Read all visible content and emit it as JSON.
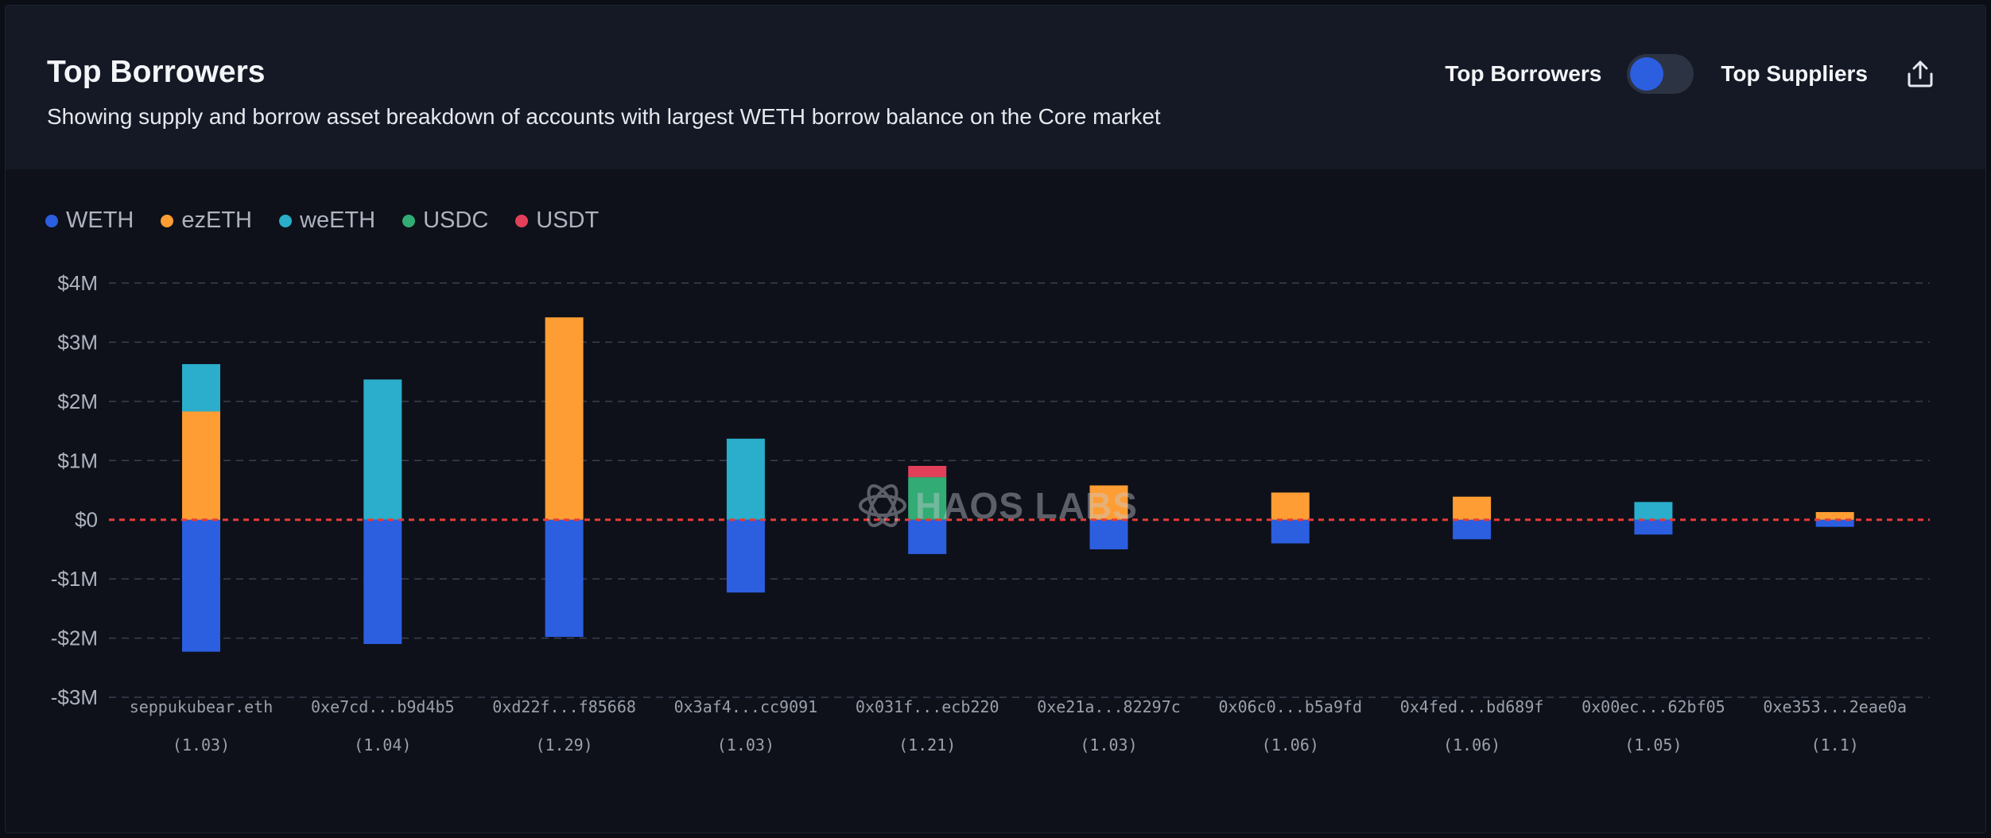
{
  "header": {
    "title": "Top Borrowers",
    "subtitle": "Showing supply and borrow asset breakdown of accounts with largest WETH borrow balance on the Core market",
    "toggle_left_label": "Top Borrowers",
    "toggle_right_label": "Top Suppliers",
    "toggle_state": "Top Borrowers",
    "share_icon": "share-icon"
  },
  "watermark": {
    "text": "HAOS LABS"
  },
  "colors": {
    "WETH": "#2c5ee0",
    "ezETH": "#fd9d33",
    "weETH": "#2aaecb",
    "USDC": "#33ab74",
    "USDT": "#e2405a",
    "zero_line": "#e53b3b",
    "grid": "#3a4050",
    "tick_text": "#aeb3bf",
    "category_text": "#9ba0ab"
  },
  "chart_data": {
    "type": "bar",
    "stacked": true,
    "title": "Top Borrowers",
    "ylim": [
      -3000000,
      4000000
    ],
    "yticks": [
      4000000,
      3000000,
      2000000,
      1000000,
      0,
      -1000000,
      -2000000,
      -3000000
    ],
    "ytick_labels": [
      "$4M",
      "$3M",
      "$2M",
      "$1M",
      "$0",
      "-$1M",
      "-$2M",
      "-$3M"
    ],
    "grid": true,
    "legend_position": "top-left",
    "categories": [
      "seppukubear.eth",
      "0xe7cd...b9d4b5",
      "0xd22f...f85668",
      "0x3af4...cc9091",
      "0x031f...ecb220",
      "0xe21a...82297c",
      "0x06c0...b5a9fd",
      "0x4fed...bd689f",
      "0x00ec...62bf05",
      "0xe353...2eae0a"
    ],
    "sublabels": [
      "(1.03)",
      "(1.04)",
      "(1.29)",
      "(1.03)",
      "(1.21)",
      "(1.03)",
      "(1.06)",
      "(1.06)",
      "(1.05)",
      "(1.1)"
    ],
    "series": [
      {
        "name": "WETH",
        "values": [
          -2230000,
          -2100000,
          -1980000,
          -1230000,
          -580000,
          -500000,
          -400000,
          -330000,
          -250000,
          -120000
        ]
      },
      {
        "name": "ezETH",
        "values": [
          1830000,
          0,
          3420000,
          0,
          0,
          580000,
          460000,
          390000,
          0,
          130000
        ]
      },
      {
        "name": "weETH",
        "values": [
          800000,
          2370000,
          0,
          1370000,
          0,
          0,
          0,
          0,
          300000,
          0
        ]
      },
      {
        "name": "USDC",
        "values": [
          0,
          0,
          0,
          0,
          720000,
          0,
          0,
          0,
          0,
          0
        ]
      },
      {
        "name": "USDT",
        "values": [
          0,
          0,
          0,
          0,
          190000,
          0,
          0,
          0,
          0,
          0
        ]
      }
    ]
  }
}
